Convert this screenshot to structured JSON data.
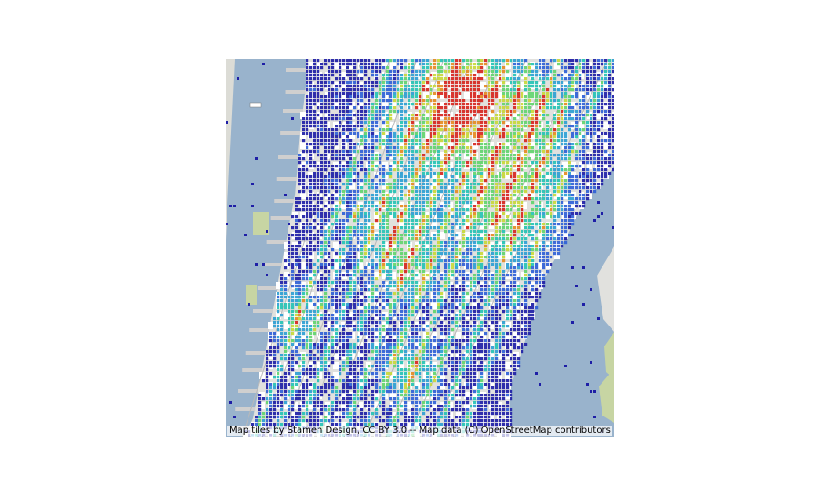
{
  "map": {
    "kind": "density heatmap over basemap",
    "area": "Manhattan, New York",
    "basemap_colors": {
      "water": "#99b3cc",
      "land": "#e1e1de",
      "park": "#c7d5a3",
      "pier": "#cfcfcf",
      "block": "#ffffff",
      "road": "#b9b9b9"
    },
    "density_colormap": [
      "#1e1ea6",
      "#2f5fd6",
      "#2d9ed2",
      "#25c2b4",
      "#62d46e",
      "#c8d838",
      "#e58a22",
      "#d6261e"
    ],
    "attribution": "Map tiles by Stamen Design, CC BY 3.0 -- Map data (C) OpenStreetMap contributors"
  }
}
